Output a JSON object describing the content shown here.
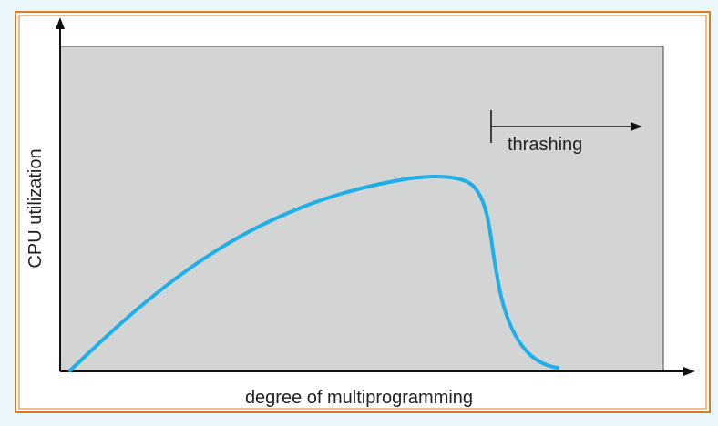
{
  "diagram": {
    "x_axis_label": "degree of multiprogramming",
    "y_axis_label": "CPU utilization",
    "annotation": "thrashing"
  },
  "colors": {
    "page_background": "#eaf7fc",
    "frame_border": "#e07b1a",
    "figure_background": "#ffffff",
    "plot_area": "#d3d4d4",
    "curve": "#1eaee8",
    "axis": "#111111"
  }
}
